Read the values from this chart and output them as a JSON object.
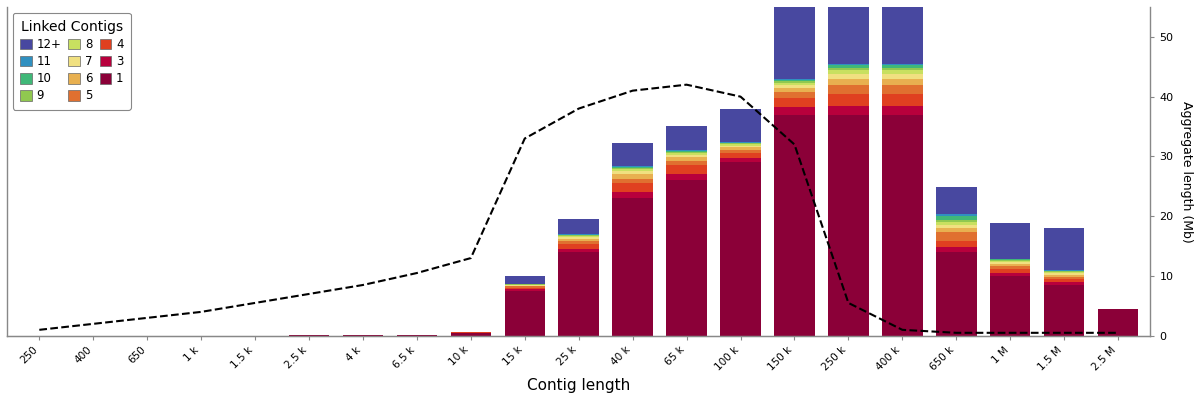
{
  "categories": [
    "250",
    "400",
    "650",
    "1 k",
    "1.5 k",
    "2.5 k",
    "4 k",
    "6.5 k",
    "10 k",
    "15 k",
    "25 k",
    "40 k",
    "65 k",
    "100 k",
    "150 k",
    "250 k",
    "400 k",
    "650 k",
    "1 M",
    "1.5 M",
    "2.5 M"
  ],
  "colors": {
    "1": "#8B0038",
    "3": "#B8003C",
    "4": "#E04020",
    "5": "#E07030",
    "6": "#E8B050",
    "7": "#F0E080",
    "8": "#C8E060",
    "9": "#90C850",
    "10": "#40B878",
    "11": "#3090C0",
    "12": "#4848A0"
  },
  "link_order": [
    "1",
    "3",
    "4",
    "5",
    "6",
    "7",
    "8",
    "9",
    "10",
    "11",
    "12"
  ],
  "legend_labels": {
    "12": "12+",
    "11": "11",
    "10": "10",
    "9": "9",
    "8": "8",
    "7": "7",
    "6": "6",
    "5": "5",
    "4": "4",
    "3": "3",
    "1": "1"
  },
  "bar_data": {
    "1": [
      0,
      0,
      0,
      0.02,
      0.05,
      0.08,
      0.1,
      0.2,
      0.5,
      7.5,
      14.0,
      23.0,
      26.0,
      29.0,
      37.0,
      37.0,
      37.0,
      14.0,
      10.0,
      8.5,
      4.5
    ],
    "3": [
      0,
      0,
      0,
      0,
      0,
      0,
      0,
      0,
      0.05,
      0.25,
      0.5,
      1.0,
      1.0,
      0.8,
      1.2,
      1.5,
      1.5,
      0.8,
      0.5,
      0.5,
      0
    ],
    "4": [
      0,
      0,
      0,
      0,
      0,
      0,
      0,
      0,
      0.05,
      0.3,
      0.8,
      1.5,
      1.5,
      0.8,
      1.5,
      2.0,
      2.0,
      1.0,
      0.6,
      0.5,
      0
    ],
    "5": [
      0,
      0,
      0,
      0,
      0,
      0,
      0,
      0,
      0.05,
      0.2,
      0.5,
      0.8,
      0.8,
      0.5,
      1.0,
      1.5,
      1.5,
      1.5,
      0.5,
      0.4,
      0
    ],
    "6": [
      0,
      0,
      0,
      0,
      0,
      0,
      0,
      0,
      0,
      0.15,
      0.4,
      0.7,
      0.6,
      0.4,
      0.7,
      1.0,
      1.0,
      0.8,
      0.4,
      0.3,
      0
    ],
    "7": [
      0,
      0,
      0,
      0,
      0,
      0,
      0,
      0,
      0,
      0.1,
      0.3,
      0.5,
      0.4,
      0.3,
      0.5,
      0.8,
      0.8,
      0.5,
      0.3,
      0.25,
      0
    ],
    "8": [
      0,
      0,
      0,
      0,
      0,
      0,
      0,
      0,
      0,
      0.08,
      0.2,
      0.35,
      0.3,
      0.25,
      0.4,
      0.6,
      0.6,
      0.4,
      0.25,
      0.2,
      0
    ],
    "9": [
      0,
      0,
      0,
      0,
      0,
      0,
      0,
      0,
      0,
      0.05,
      0.12,
      0.2,
      0.2,
      0.15,
      0.3,
      0.45,
      0.45,
      0.3,
      0.15,
      0.12,
      0
    ],
    "10": [
      0,
      0,
      0,
      0,
      0,
      0,
      0,
      0,
      0,
      0.05,
      0.1,
      0.15,
      0.15,
      0.12,
      0.25,
      0.4,
      0.4,
      0.8,
      0.12,
      0.1,
      0
    ],
    "11": [
      0,
      0,
      0,
      0,
      0,
      0,
      0,
      0,
      0,
      0.04,
      0.08,
      0.12,
      0.1,
      0.08,
      0.18,
      0.28,
      0.28,
      0.28,
      0.08,
      0.08,
      0
    ],
    "12": [
      0,
      0,
      0,
      0,
      0,
      0,
      0,
      0,
      0,
      1.3,
      2.5,
      4.0,
      4.0,
      5.5,
      13.0,
      12.5,
      12.5,
      4.5,
      6.0,
      7.0,
      0
    ]
  },
  "dashed_line": [
    1.0,
    2.0,
    3.0,
    4.0,
    5.5,
    7.0,
    8.5,
    10.5,
    13.0,
    33.0,
    38.0,
    41.0,
    42.0,
    40.0,
    32.0,
    5.5,
    1.0,
    0.5,
    0.5,
    0.5,
    0.5
  ],
  "ylabel_right": "Aggregate length (Mb)",
  "xlabel": "Contig length",
  "ylim": [
    0,
    55
  ],
  "yticks": [
    0,
    10,
    20,
    30,
    40,
    50
  ],
  "background_color": "#ffffff"
}
